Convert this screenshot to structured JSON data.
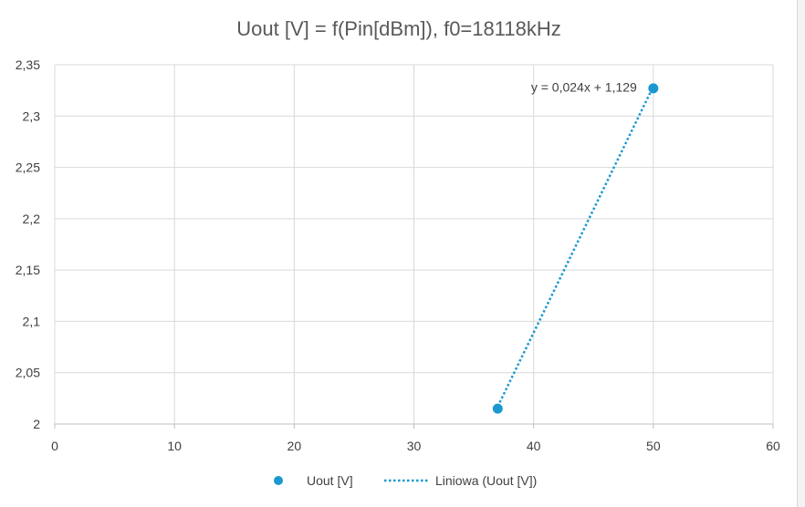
{
  "chart_data": {
    "type": "scatter",
    "title": "Uout [V] = f(Pin[dBm]), f0=18118kHz",
    "xlabel": "",
    "ylabel": "",
    "xlim": [
      0,
      60
    ],
    "ylim": [
      2,
      2.35
    ],
    "x_ticks": [
      0,
      10,
      20,
      30,
      40,
      50,
      60
    ],
    "y_ticks": [
      2,
      2.05,
      2.1,
      2.15,
      2.2,
      2.25,
      2.3,
      2.35
    ],
    "x_tick_labels": [
      "0",
      "10",
      "20",
      "30",
      "40",
      "50",
      "60"
    ],
    "y_tick_labels": [
      "2",
      "2,05",
      "2,1",
      "2,15",
      "2,2",
      "2,25",
      "2,3",
      "2,35"
    ],
    "grid": true,
    "legend_position": "bottom",
    "series": [
      {
        "name": "Uout [V]",
        "color": "#1b98d0",
        "x": [
          37,
          50
        ],
        "y": [
          2.015,
          2.327
        ]
      }
    ],
    "trendline": {
      "name": "Liniowa (Uout [V])",
      "type": "linear",
      "color": "#1b98d0",
      "x": [
        37,
        50
      ],
      "y": [
        2.017,
        2.329
      ],
      "equation": "y = 0,024x + 1,129"
    }
  }
}
